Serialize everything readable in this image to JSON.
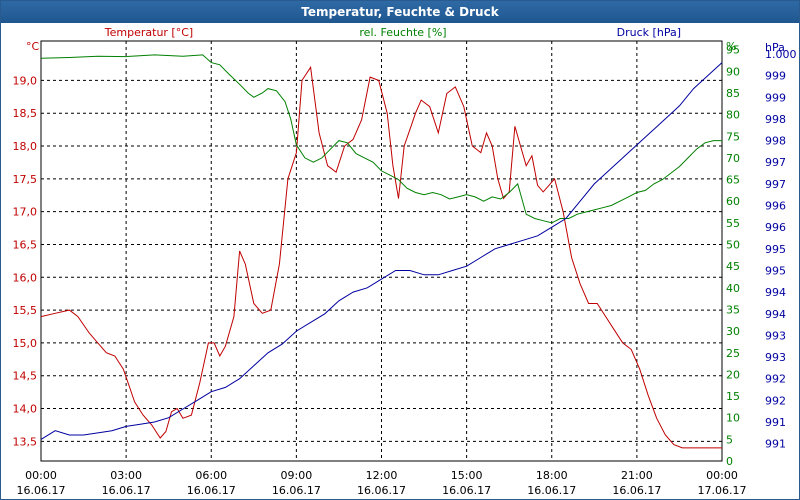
{
  "window": {
    "title": "Temperatur, Feuchte & Druck"
  },
  "chart_data": {
    "type": "line",
    "title": "Temperatur, Feuchte & Druck",
    "grid": true,
    "x_ticks": [
      {
        "time": "00:00",
        "date": "16.06.17"
      },
      {
        "time": "03:00",
        "date": "16.06.17"
      },
      {
        "time": "06:00",
        "date": "16.06.17"
      },
      {
        "time": "09:00",
        "date": "16.06.17"
      },
      {
        "time": "12:00",
        "date": "16.06.17"
      },
      {
        "time": "15:00",
        "date": "16.06.17"
      },
      {
        "time": "18:00",
        "date": "16.06.17"
      },
      {
        "time": "21:00",
        "date": "16.06.17"
      },
      {
        "time": "00:00",
        "date": "17.06.17"
      }
    ],
    "xlim": [
      0,
      24
    ],
    "axes": {
      "temperature": {
        "unit": "°C",
        "ylim": [
          13.2,
          19.6
        ],
        "ticks": [
          13.5,
          14.0,
          14.5,
          15.0,
          15.5,
          16.0,
          16.5,
          17.0,
          17.5,
          18.0,
          18.5,
          19.0
        ],
        "tick_labels": [
          "13,5",
          "14,0",
          "14,5",
          "15,0",
          "15,5",
          "16,0",
          "16,5",
          "17,0",
          "17,5",
          "18,0",
          "18,5",
          "19,0"
        ],
        "color": "#c00000"
      },
      "humidity": {
        "unit": "%",
        "ylim": [
          0,
          97
        ],
        "ticks": [
          0,
          5,
          10,
          15,
          20,
          25,
          30,
          35,
          40,
          45,
          50,
          55,
          60,
          65,
          70,
          75,
          80,
          85,
          90,
          95
        ],
        "tick_labels": [
          "0",
          "5",
          "10",
          "15",
          "20",
          "25",
          "30",
          "35",
          "40",
          "45",
          "50",
          "55",
          "60",
          "65",
          "70",
          "75",
          "80",
          "85",
          "90",
          "95"
        ],
        "color": "#008000"
      },
      "pressure": {
        "unit": "hPa",
        "ylim": [
          990.6,
          1000.3
        ],
        "ticks": [
          991.0,
          991.5,
          992.0,
          992.5,
          993.0,
          993.5,
          994.0,
          994.5,
          995.0,
          995.5,
          996.0,
          996.5,
          997.0,
          997.5,
          998.0,
          998.5,
          999.0,
          999.5,
          1000.0
        ],
        "tick_labels": [
          "991",
          "991",
          "992",
          "992",
          "993",
          "993",
          "994",
          "994",
          "995",
          "995",
          "996",
          "996",
          "997",
          "997",
          "998",
          "998",
          "999",
          "999",
          "1.000"
        ],
        "color": "#0000a0"
      }
    },
    "series": [
      {
        "name": "Temperatur [°C]",
        "axis": "temperature",
        "color": "#c00000",
        "x": [
          0,
          0.5,
          1,
          1.3,
          1.7,
          2,
          2.3,
          2.6,
          2.9,
          3.1,
          3.3,
          3.6,
          3.9,
          4.2,
          4.4,
          4.6,
          4.8,
          5,
          5.3,
          5.6,
          5.9,
          6.1,
          6.3,
          6.5,
          6.8,
          7,
          7.2,
          7.5,
          7.8,
          8.1,
          8.4,
          8.7,
          9,
          9.2,
          9.5,
          9.8,
          10.1,
          10.4,
          10.7,
          11,
          11.3,
          11.6,
          11.9,
          12.2,
          12.4,
          12.6,
          12.8,
          13,
          13.2,
          13.4,
          13.7,
          14,
          14.3,
          14.6,
          14.9,
          15.2,
          15.5,
          15.7,
          15.9,
          16.1,
          16.3,
          16.5,
          16.7,
          16.9,
          17.1,
          17.3,
          17.5,
          17.7,
          17.9,
          18.1,
          18.4,
          18.7,
          19,
          19.3,
          19.6,
          19.9,
          20.2,
          20.5,
          20.8,
          21.1,
          21.4,
          21.7,
          22,
          22.3,
          22.6,
          22.9,
          23.2,
          23.5,
          23.8,
          24
        ],
        "y": [
          15.4,
          15.45,
          15.5,
          15.4,
          15.15,
          15.0,
          14.85,
          14.8,
          14.6,
          14.35,
          14.1,
          13.9,
          13.75,
          13.55,
          13.65,
          13.95,
          14.0,
          13.85,
          13.9,
          14.4,
          15.0,
          15.0,
          14.8,
          14.95,
          15.4,
          16.4,
          16.2,
          15.6,
          15.45,
          15.5,
          16.2,
          17.5,
          17.9,
          19.0,
          19.2,
          18.2,
          17.7,
          17.6,
          18.0,
          18.1,
          18.4,
          19.05,
          19.0,
          18.5,
          17.7,
          17.2,
          18.0,
          18.25,
          18.5,
          18.7,
          18.6,
          18.2,
          18.8,
          18.9,
          18.6,
          18.0,
          17.9,
          18.2,
          18.0,
          17.5,
          17.2,
          17.3,
          18.3,
          18.0,
          17.7,
          17.85,
          17.4,
          17.3,
          17.4,
          17.5,
          17.0,
          16.3,
          15.9,
          15.6,
          15.6,
          15.4,
          15.2,
          15.0,
          14.9,
          14.6,
          14.2,
          13.85,
          13.6,
          13.45,
          13.4,
          13.4,
          13.4,
          13.4,
          13.4,
          13.4
        ]
      },
      {
        "name": "rel. Feuchte [%]",
        "axis": "humidity",
        "color": "#008000",
        "x": [
          0,
          1,
          2,
          3,
          4,
          5,
          5.7,
          6,
          6.3,
          6.6,
          7,
          7.3,
          7.5,
          7.8,
          8,
          8.3,
          8.6,
          8.8,
          9,
          9.3,
          9.6,
          9.9,
          10.2,
          10.5,
          10.8,
          11.1,
          11.4,
          11.7,
          12,
          12.3,
          12.6,
          12.9,
          13.2,
          13.5,
          13.8,
          14.1,
          14.4,
          14.7,
          15,
          15.3,
          15.6,
          15.9,
          16.2,
          16.5,
          16.8,
          17.1,
          17.4,
          17.7,
          18,
          18.3,
          18.6,
          18.9,
          19.2,
          19.5,
          19.8,
          20.1,
          20.4,
          20.7,
          21,
          21.3,
          21.6,
          21.9,
          22.2,
          22.5,
          22.8,
          23.1,
          23.4,
          23.7,
          24
        ],
        "y": [
          93,
          93.2,
          93.5,
          93.4,
          93.8,
          93.5,
          93.8,
          92.0,
          91.5,
          89.5,
          87,
          85,
          84,
          85,
          86,
          85.5,
          83,
          79,
          73,
          70,
          69,
          70,
          72,
          74,
          73.5,
          71,
          70,
          69,
          67,
          66,
          65,
          63,
          62,
          61.5,
          62,
          61.5,
          60.5,
          61,
          61.5,
          61,
          60,
          61,
          60.5,
          62,
          64,
          57,
          56,
          55.5,
          55,
          56,
          56,
          57,
          57.5,
          58,
          58.5,
          59,
          60,
          61,
          62,
          62.5,
          64,
          65,
          66.5,
          68,
          70,
          72,
          73.5,
          74,
          74
        ]
      },
      {
        "name": "Druck [hPa]",
        "axis": "pressure",
        "color": "#0000a0",
        "x": [
          0,
          0.5,
          1,
          1.5,
          2,
          2.5,
          3,
          3.5,
          4,
          4.5,
          5,
          5.5,
          6,
          6.5,
          7,
          7.5,
          8,
          8.5,
          9,
          9.5,
          10,
          10.5,
          11,
          11.5,
          12,
          12.5,
          13,
          13.5,
          14,
          14.5,
          15,
          15.5,
          16,
          16.5,
          17,
          17.5,
          18,
          18.5,
          19,
          19.5,
          20,
          20.5,
          21,
          21.5,
          22,
          22.5,
          23,
          23.5,
          24
        ],
        "y": [
          991.1,
          991.3,
          991.2,
          991.2,
          991.25,
          991.3,
          991.4,
          991.45,
          991.5,
          991.6,
          991.8,
          992.0,
          992.2,
          992.3,
          992.5,
          992.8,
          993.1,
          993.3,
          993.6,
          993.8,
          994.0,
          994.3,
          994.5,
          994.6,
          994.8,
          995.0,
          995.0,
          994.9,
          994.9,
          995.0,
          995.1,
          995.3,
          995.5,
          995.6,
          995.7,
          995.8,
          996.0,
          996.2,
          996.6,
          997.0,
          997.3,
          997.6,
          997.9,
          998.2,
          998.5,
          998.8,
          999.2,
          999.5,
          999.8
        ]
      }
    ]
  }
}
